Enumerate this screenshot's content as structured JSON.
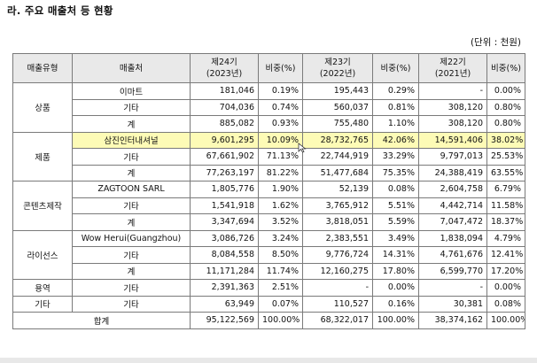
{
  "title": "라. 주요 매출처 등 현황",
  "unit": "(단위 : 천원)",
  "headers": {
    "type": "매출유형",
    "customer": "매출처",
    "p24": "제24기",
    "p24_year": "(2023년)",
    "ratio": "비중(%)",
    "p23": "제23기",
    "p23_year": "(2022년)",
    "p22": "제22기",
    "p22_year": "(2021년)"
  },
  "categories": {
    "goods": "상품",
    "products": "제품",
    "content": "콘텐츠제작",
    "license": "라이선스",
    "service": "용역",
    "other": "기타"
  },
  "rows": [
    {
      "customer": "이마트",
      "v24": "181,046",
      "r24": "0.19%",
      "v23": "195,443",
      "r23": "0.29%",
      "v22": "-",
      "r22": "0.00%"
    },
    {
      "customer": "기타",
      "v24": "704,036",
      "r24": "0.74%",
      "v23": "560,037",
      "r23": "0.81%",
      "v22": "308,120",
      "r22": "0.80%"
    },
    {
      "customer": "계",
      "v24": "885,082",
      "r24": "0.93%",
      "v23": "755,480",
      "r23": "1.10%",
      "v22": "308,120",
      "r22": "0.80%"
    },
    {
      "customer": "삼진인터내셔널",
      "v24": "9,601,295",
      "r24": "10.09%",
      "v23": "28,732,765",
      "r23": "42.06%",
      "v22": "14,591,406",
      "r22": "38.02%"
    },
    {
      "customer": "기타",
      "v24": "67,661,902",
      "r24": "71.13%",
      "v23": "22,744,919",
      "r23": "33.29%",
      "v22": "9,797,013",
      "r22": "25.53%"
    },
    {
      "customer": "계",
      "v24": "77,263,197",
      "r24": "81.22%",
      "v23": "51,477,684",
      "r23": "75.35%",
      "v22": "24,388,419",
      "r22": "63.55%"
    },
    {
      "customer": "ZAGTOON SARL",
      "v24": "1,805,776",
      "r24": "1.90%",
      "v23": "52,139",
      "r23": "0.08%",
      "v22": "2,604,758",
      "r22": "6.79%"
    },
    {
      "customer": "기타",
      "v24": "1,541,918",
      "r24": "1.62%",
      "v23": "3,765,912",
      "r23": "5.51%",
      "v22": "4,442,714",
      "r22": "11.58%"
    },
    {
      "customer": "계",
      "v24": "3,347,694",
      "r24": "3.52%",
      "v23": "3,818,051",
      "r23": "5.59%",
      "v22": "7,047,472",
      "r22": "18.37%"
    },
    {
      "customer": "Wow Herui(Guangzhou)",
      "v24": "3,086,726",
      "r24": "3.24%",
      "v23": "2,383,551",
      "r23": "3.49%",
      "v22": "1,838,094",
      "r22": "4.79%"
    },
    {
      "customer": "기타",
      "v24": "8,084,558",
      "r24": "8.50%",
      "v23": "9,776,724",
      "r23": "14.31%",
      "v22": "4,761,676",
      "r22": "12.41%"
    },
    {
      "customer": "계",
      "v24": "11,171,284",
      "r24": "11.74%",
      "v23": "12,160,275",
      "r23": "17.80%",
      "v22": "6,599,770",
      "r22": "17.20%"
    },
    {
      "customer": "기타",
      "v24": "2,391,363",
      "r24": "2.51%",
      "v23": "-",
      "r23": "0.00%",
      "v22": "-",
      "r22": "0.00%"
    },
    {
      "customer": "기타",
      "v24": "63,949",
      "r24": "0.07%",
      "v23": "110,527",
      "r23": "0.16%",
      "v22": "30,381",
      "r22": "0.08%"
    }
  ],
  "total": {
    "label": "합계",
    "v24": "95,122,569",
    "r24": "100.00%",
    "v23": "68,322,017",
    "r23": "100.00%",
    "v22": "38,374,162",
    "r22": "100.00%"
  },
  "cursor_icon": "mouse-pointer-icon"
}
